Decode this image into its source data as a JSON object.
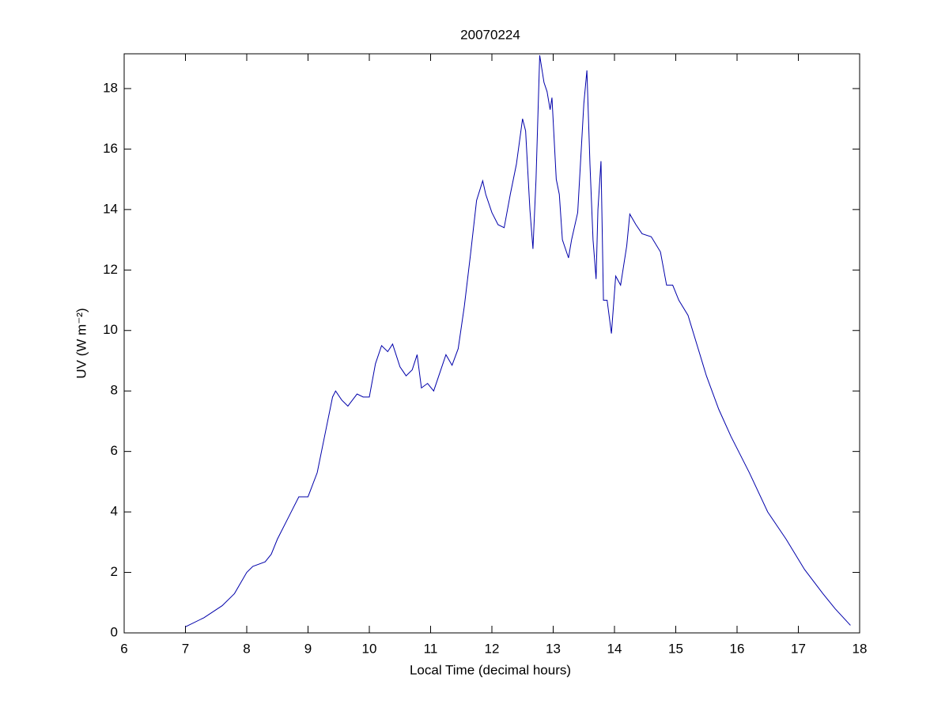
{
  "chart_data": {
    "type": "line",
    "title": "20070224",
    "x_label": "Local Time (decimal hours)",
    "y_label": "UV (W m⁻²)",
    "xlim": [
      6,
      18
    ],
    "xticks": [
      6,
      7,
      8,
      9,
      10,
      11,
      12,
      13,
      14,
      15,
      16,
      17,
      18
    ],
    "ylim": [
      0,
      19.15
    ],
    "yticks": [
      0,
      2,
      4,
      6,
      8,
      10,
      12,
      14,
      16,
      18
    ],
    "grid": false,
    "series": [
      {
        "color": "#0000aa",
        "x": [
          7.0,
          7.3,
          7.6,
          7.8,
          8.0,
          8.1,
          8.3,
          8.4,
          8.5,
          8.7,
          8.85,
          9.0,
          9.15,
          9.3,
          9.4,
          9.45,
          9.55,
          9.65,
          9.8,
          9.9,
          10.0,
          10.1,
          10.2,
          10.3,
          10.38,
          10.5,
          10.6,
          10.7,
          10.78,
          10.85,
          10.95,
          11.05,
          11.2,
          11.25,
          11.35,
          11.45,
          11.55,
          11.65,
          11.75,
          11.85,
          11.9,
          12.0,
          12.1,
          12.2,
          12.3,
          12.4,
          12.5,
          12.55,
          12.62,
          12.67,
          12.72,
          12.78,
          12.85,
          12.9,
          12.95,
          12.98,
          13.05,
          13.1,
          13.15,
          13.25,
          13.3,
          13.4,
          13.5,
          13.55,
          13.6,
          13.65,
          13.7,
          13.73,
          13.78,
          13.82,
          13.88,
          13.95,
          14.02,
          14.1,
          14.2,
          14.25,
          14.35,
          14.45,
          14.6,
          14.75,
          14.85,
          14.95,
          15.05,
          15.2,
          15.35,
          15.5,
          15.7,
          15.9,
          16.2,
          16.5,
          16.8,
          17.1,
          17.4,
          17.6,
          17.85
        ],
        "values": [
          0.2,
          0.5,
          0.9,
          1.3,
          2.0,
          2.2,
          2.35,
          2.6,
          3.1,
          3.9,
          4.5,
          4.5,
          5.3,
          6.8,
          7.8,
          8.0,
          7.7,
          7.5,
          7.9,
          7.8,
          7.8,
          8.9,
          9.5,
          9.3,
          9.55,
          8.8,
          8.5,
          8.7,
          9.2,
          8.1,
          8.25,
          8.0,
          8.9,
          9.2,
          8.85,
          9.4,
          10.8,
          12.5,
          14.3,
          14.95,
          14.5,
          13.9,
          13.5,
          13.4,
          14.5,
          15.5,
          17.0,
          16.6,
          14.0,
          12.7,
          15.0,
          19.1,
          18.2,
          17.9,
          17.3,
          17.7,
          15.0,
          14.5,
          13.0,
          12.4,
          13.0,
          13.9,
          17.5,
          18.6,
          15.5,
          13.0,
          11.7,
          14.0,
          15.6,
          11.0,
          11.0,
          9.9,
          11.8,
          11.5,
          12.8,
          13.85,
          13.5,
          13.2,
          13.1,
          12.6,
          11.5,
          11.5,
          11.0,
          10.5,
          9.5,
          8.5,
          7.4,
          6.5,
          5.3,
          4.0,
          3.1,
          2.1,
          1.3,
          0.8,
          0.25
        ]
      }
    ]
  }
}
